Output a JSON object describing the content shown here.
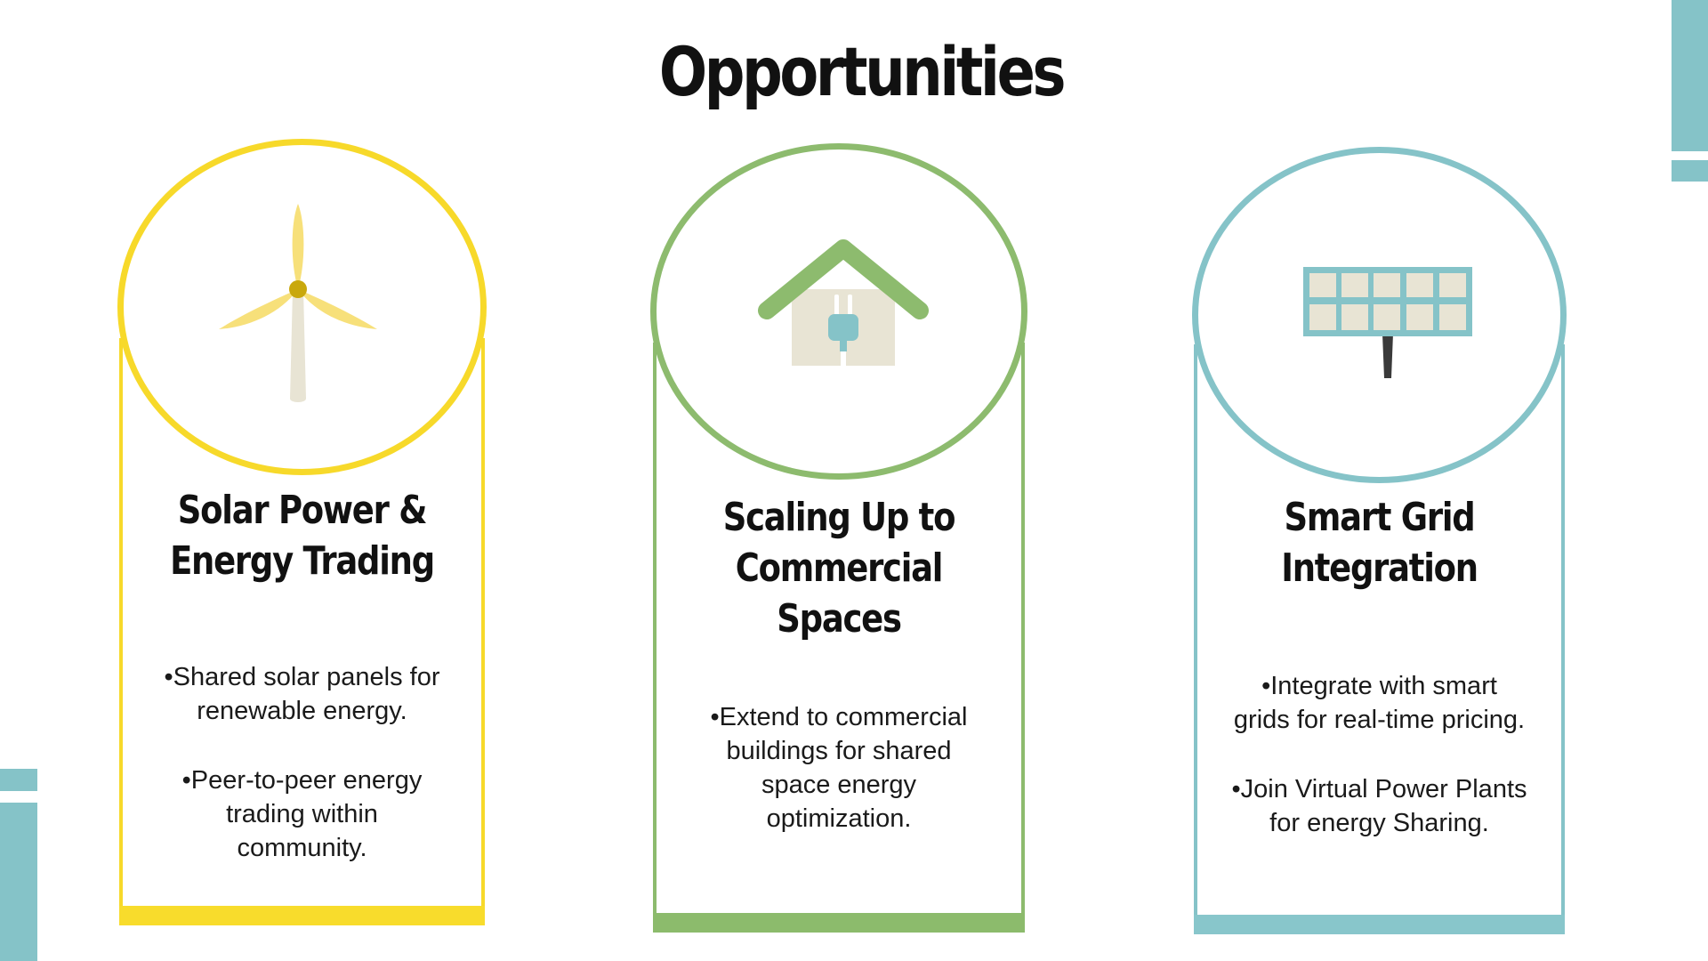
{
  "title": "Opportunities",
  "colors": {
    "yellow": "#f7d92a",
    "yellow_bar": "#f8dc2c",
    "green": "#8dbb6e",
    "green_bar": "#8cbb6c",
    "teal": "#85c3c8",
    "teal_bar": "#88c6cb"
  },
  "cards": [
    {
      "icon": "wind-turbine-icon",
      "title_line1": "Solar Power &",
      "title_line2": "Energy Trading",
      "bullet1_line1": "•Shared solar panels for",
      "bullet1_line2": "renewable energy.",
      "bullet2_line1": "•Peer-to-peer energy",
      "bullet2_line2": "trading within",
      "bullet2_line3": "community."
    },
    {
      "icon": "house-plug-icon",
      "title_line1": "Scaling Up to",
      "title_line2": "Commercial Spaces",
      "bullet1_line1": "•Extend to commercial",
      "bullet1_line2": "buildings for shared",
      "bullet1_line3": "space energy",
      "bullet1_line4": "optimization."
    },
    {
      "icon": "solar-panel-icon",
      "title_line1": "Smart Grid",
      "title_line2": "Integration",
      "bullet1_line1": "•Integrate with smart",
      "bullet1_line2": "grids for real-time pricing.",
      "bullet2_line1": "•Join Virtual Power Plants",
      "bullet2_line2": "for energy Sharing."
    }
  ]
}
